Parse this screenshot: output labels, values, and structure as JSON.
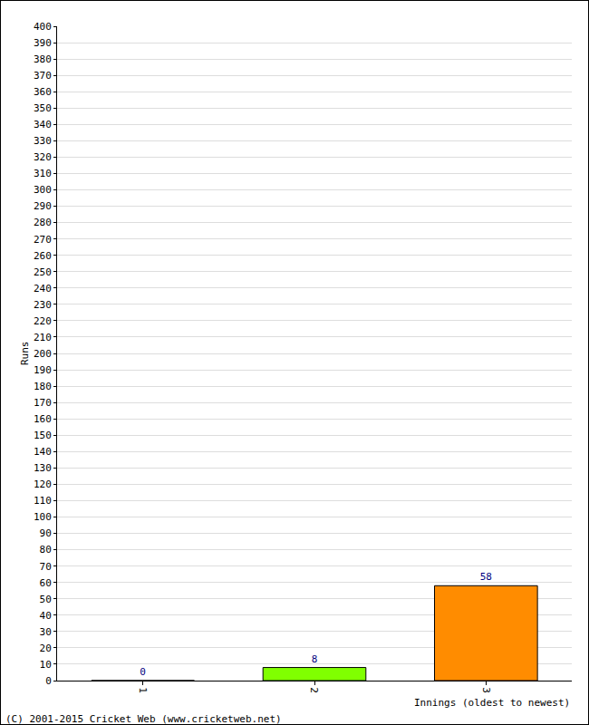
{
  "chart_data": {
    "type": "bar",
    "categories": [
      "1",
      "2",
      "3"
    ],
    "values": [
      0,
      8,
      58
    ],
    "colors": [
      "#ff0000",
      "#80ff00",
      "#ff8c00"
    ],
    "x_label": "Innings (oldest to newest)",
    "y_label": "Runs",
    "annotations": [
      "(C) 2001-2015 Cricket Web (www.cricketweb.net)"
    ],
    "ylim": [
      0,
      400
    ],
    "yticks": [
      0,
      10,
      20,
      30,
      40,
      50,
      60,
      70,
      80,
      90,
      100,
      110,
      120,
      130,
      140,
      150,
      160,
      170,
      180,
      190,
      200,
      210,
      220,
      230,
      240,
      250,
      260,
      270,
      280,
      290,
      300,
      310,
      320,
      330,
      340,
      350,
      360,
      370,
      380,
      390,
      400
    ],
    "grid": true,
    "data_labels": true
  }
}
